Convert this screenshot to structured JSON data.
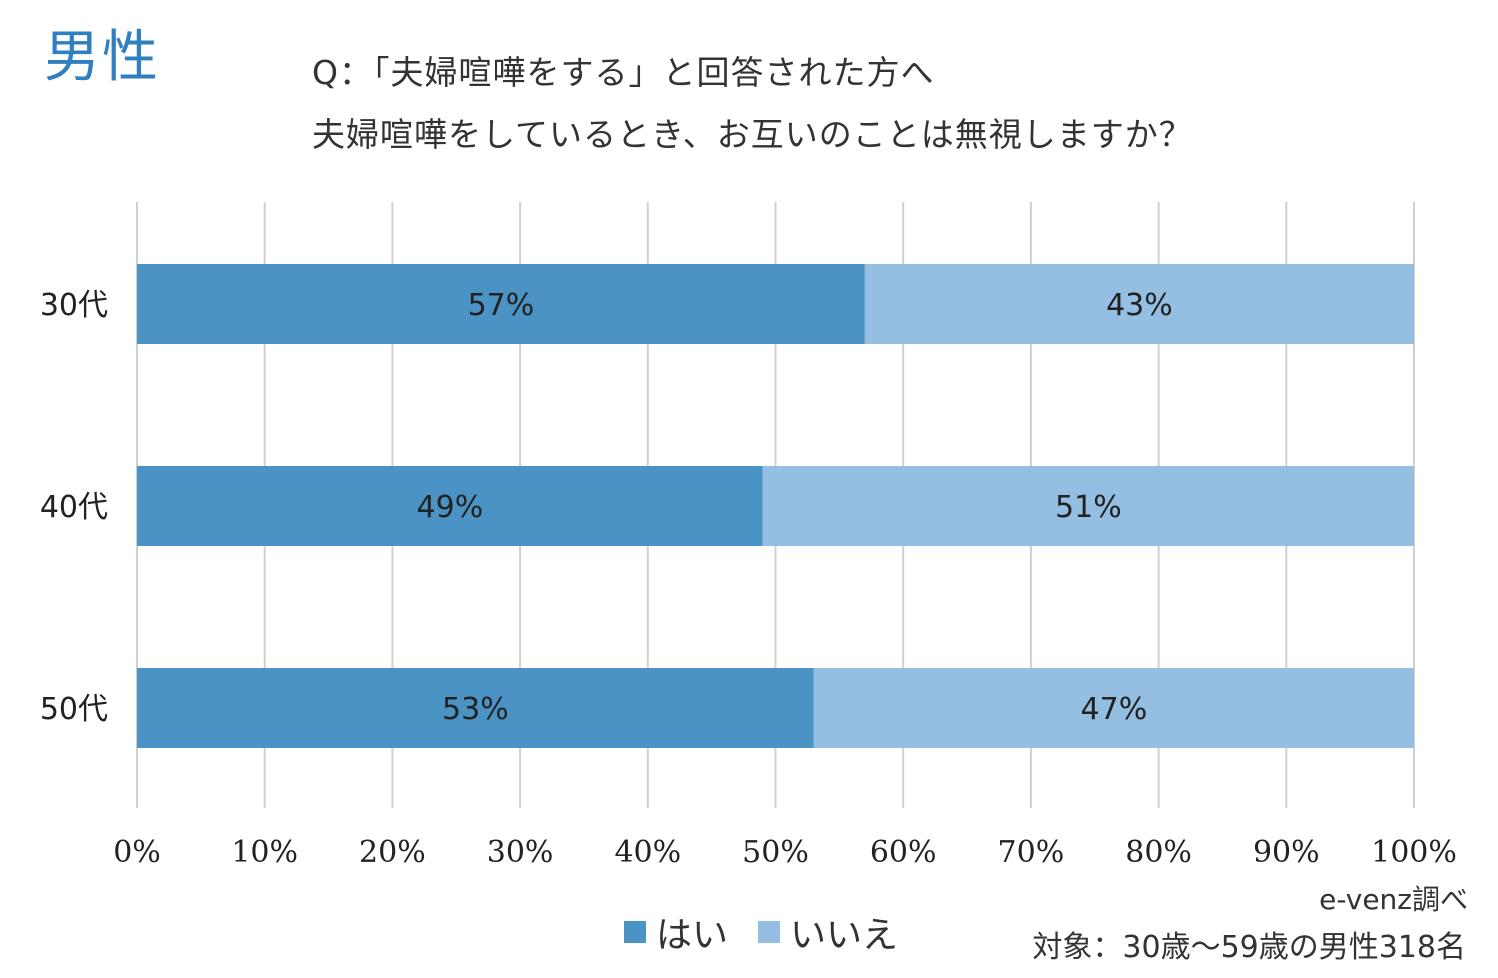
{
  "header": {
    "gender": "男性",
    "question_line1": "Q：「夫婦喧嘩をする」と回答された方へ",
    "question_line2": "夫婦喧嘩をしているとき、お互いのことは無視しますか？"
  },
  "colors": {
    "yes": "#4a93c4",
    "no": "#94bfe3",
    "accent": "#2f7fc1",
    "grid": "#d0d0d0"
  },
  "chart_data": {
    "type": "bar",
    "orientation": "horizontal",
    "stacked": true,
    "categories": [
      "30代",
      "40代",
      "50代"
    ],
    "series": [
      {
        "name": "はい",
        "values": [
          57,
          49,
          53
        ],
        "labels": [
          "57%",
          "49%",
          "53%"
        ]
      },
      {
        "name": "いいえ",
        "values": [
          43,
          51,
          47
        ],
        "labels": [
          "43%",
          "51%",
          "47%"
        ]
      }
    ],
    "xlim": [
      0,
      100
    ],
    "x_ticks": [
      "0%",
      "10%",
      "20%",
      "30%",
      "40%",
      "50%",
      "60%",
      "70%",
      "80%",
      "90%",
      "100%"
    ],
    "grid": true,
    "legend": "bottom"
  },
  "footer": {
    "source": "e-venz調べ",
    "note": "対象：30歳～59歳の男性318名"
  }
}
